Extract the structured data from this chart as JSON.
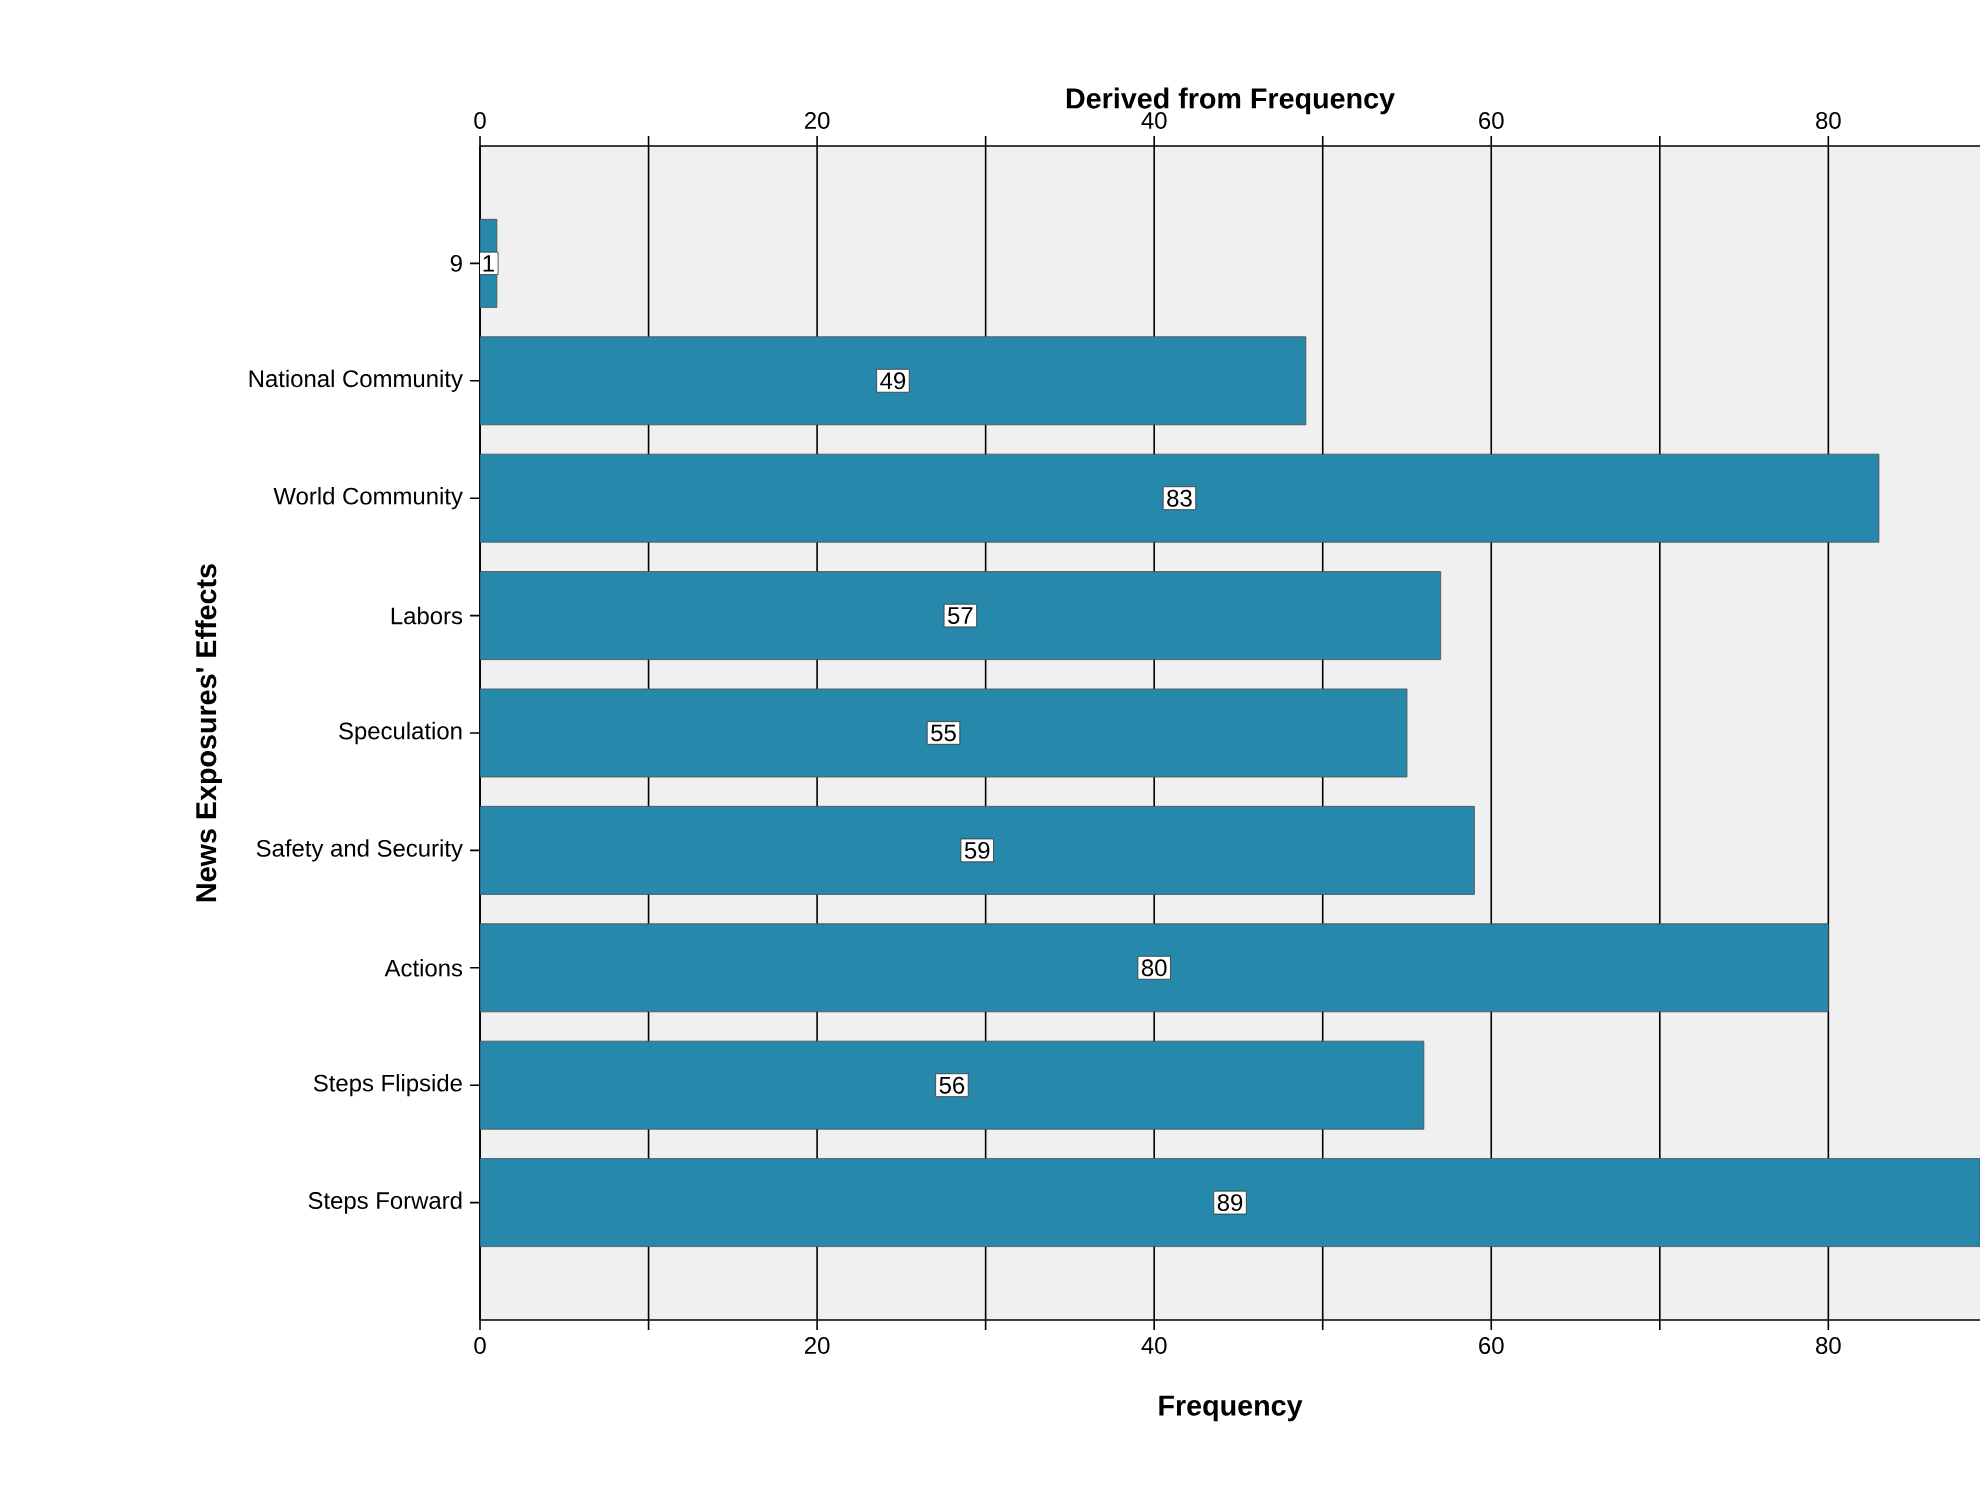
{
  "chart_data": {
    "type": "bar",
    "orientation": "horizontal",
    "xlabel": "Frequency",
    "ylabel": "News Exposures' Effects",
    "x2label": "Derived from Frequency",
    "categories": [
      "9",
      "National Community",
      "World Community",
      "Labors",
      "Speculation",
      "Safety and Security",
      "Actions",
      "Steps Flipside",
      "Steps Forward"
    ],
    "values": [
      1,
      49,
      83,
      57,
      55,
      59,
      80,
      56,
      89
    ],
    "color": "#2688ab",
    "data_labels": true,
    "grid": "x",
    "xlim": [
      0,
      89
    ],
    "xticks": [
      0,
      {
        "value": 10,
        "label": null
      },
      20,
      {
        "value": 30,
        "label": null
      },
      40,
      {
        "value": 50,
        "label": null
      },
      60,
      {
        "value": 70,
        "label": null
      },
      80
    ],
    "x2lim": [
      0,
      89
    ],
    "x2ticks": [
      0,
      {
        "value": 10,
        "label": null
      },
      20,
      {
        "value": 30,
        "label": null
      },
      40,
      {
        "value": 50,
        "label": null
      },
      60,
      {
        "value": 70,
        "label": null
      },
      80
    ]
  }
}
